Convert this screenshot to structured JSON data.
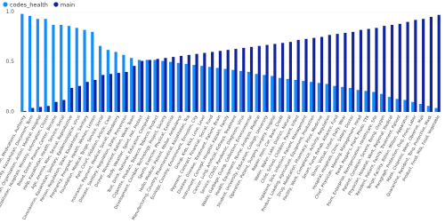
{
  "chart_data": {
    "type": "bar",
    "categories": [
      "Medical, Means, Organization, Medications, Authority",
      "Expertise, Authority, Kazakhstan, Document, Term",
      "Kazakhstan, Organization, Action, Medical, Hospital",
      "Kazakhstan, Hospitals, Ministry, Information, Citizen",
      "Blood, Donor, Plasma, Center, Become",
      "Help, Kazakhstan, Health, Service, Social",
      "Age, Anemia, Man, Sexual, Reproductive",
      "Coronavirus, Kazakhstan, Sanitary, Epidemiological, Virus",
      "Person, Regulation, State, Kazakhstan, Sanitary",
      "Pregnancy, Pregnant, Health, Women, Lesson",
      "Foundation, Medical, Tenge, Service, Social",
      "Park, Court, Violation, Article, Case",
      "Insurance, Payment, Medical, Social, Mandatory",
      "Disease, Sanitary, Regulation, State, Prevention",
      "Dinner, Movement, Ration, Week, Team",
      "Body, Weather, Sport, Hot, Protect",
      "Test, Drink, National, Education, Computer",
      "Cigarette, Product, Tobacco, Tobacco, Product",
      "Development, Combat, Technology, Project, Society",
      "Sports, Exercise, Physical, Exercise",
      "Hello, Medical, Patient, Moller, Ambulance",
      "Manufacturing, Country, Pharmaceutical, Kazakhstan, Tea",
      "Ecology, Country, Environment, Emission, City",
      "Group, Kids, Kick, Love, Level",
      "Payment, Contract, Financial, Social, Fund",
      "Disease, Disease, Treatment, Patient, Brain",
      "Instrument, Concept, Hospital, Kazakh, Family",
      "Cancer, Lung, Artificial, Kidneys, Treatment",
      "Service, COVID, Pandemic, Diagnosis, Virus",
      "Waste, Garbage, Dump, Collection, Environmental",
      "Health, Equipment, Nurse, Analysis, Medical",
      "Student, University, Education, College, University",
      "Operation, Patient, Surgery, Surgery, Hospital",
      "Repair, Item, Car, Bank, Credit",
      "Water, Water, Lake, District, Natural",
      "Child, School, Children, Parent, Infant",
      "Inpatient, Sick, Infection, Patient, Management",
      "Product, Loading, Agriculture, Equipment, Production",
      "Drug, Medication, Pharmacy, Price, Medicine",
      "Facility, Work, Compliance, Activity, Regulation",
      "Smart, Fund, Rehab, Alliance, Fund",
      "Strain, Virtual, Infant, Daily, Wear",
      "Hospital, Hospitals, Clinic, Salary, Doctor",
      "Chief, Physician, Meeting, Management, Head",
      "Read, People's, Plant, Photo, TTK",
      "Point, Enterprise, Reorganization, Healthcare, Site",
      "Patient, Condition, Severe, Being, Oxygen",
      "Physician, Hospital, Work, Regional, Medical",
      "Resident, Patient, Family, Treatment, Patient",
      "Tenge, Facility, Billion, Million, Apparatus",
      "Paragraph, Protection, Dog, Fines, Labor",
      "Mask, Chlamini, Wear, Observe, Mall",
      "Quarantine, Resident, Tong, Protective, Mask",
      "Product, Food, Milk, Food, Vegetable"
    ],
    "series": [
      {
        "name": "codes_health",
        "color": "#118dff",
        "values": [
          0.98,
          0.96,
          0.93,
          0.93,
          0.87,
          0.87,
          0.86,
          0.84,
          0.82,
          0.8,
          0.66,
          0.62,
          0.6,
          0.57,
          0.54,
          0.52,
          0.52,
          0.52,
          0.51,
          0.5,
          0.49,
          0.48,
          0.47,
          0.46,
          0.45,
          0.44,
          0.43,
          0.42,
          0.41,
          0.4,
          0.38,
          0.37,
          0.36,
          0.34,
          0.33,
          0.32,
          0.31,
          0.3,
          0.29,
          0.28,
          0.26,
          0.25,
          0.24,
          0.22,
          0.21,
          0.2,
          0.18,
          0.15,
          0.13,
          0.12,
          0.1,
          0.08,
          0.06,
          0.04
        ]
      },
      {
        "name": "main",
        "color": "#12239e",
        "values": [
          0.01,
          0.04,
          0.05,
          0.06,
          0.1,
          0.12,
          0.24,
          0.26,
          0.3,
          0.32,
          0.37,
          0.38,
          0.39,
          0.4,
          0.46,
          0.51,
          0.52,
          0.53,
          0.54,
          0.55,
          0.56,
          0.57,
          0.58,
          0.59,
          0.6,
          0.61,
          0.62,
          0.63,
          0.64,
          0.65,
          0.66,
          0.67,
          0.68,
          0.69,
          0.7,
          0.72,
          0.73,
          0.74,
          0.75,
          0.77,
          0.78,
          0.79,
          0.8,
          0.82,
          0.83,
          0.84,
          0.86,
          0.87,
          0.88,
          0.9,
          0.92,
          0.93,
          0.95,
          0.97
        ]
      }
    ],
    "ylim": [
      0,
      1.03
    ],
    "yticks": [
      {
        "value": 0,
        "label": "0.0"
      },
      {
        "value": 0.5,
        "label": "0.5"
      },
      {
        "value": 1,
        "label": "1.0"
      }
    ],
    "grid": true
  }
}
